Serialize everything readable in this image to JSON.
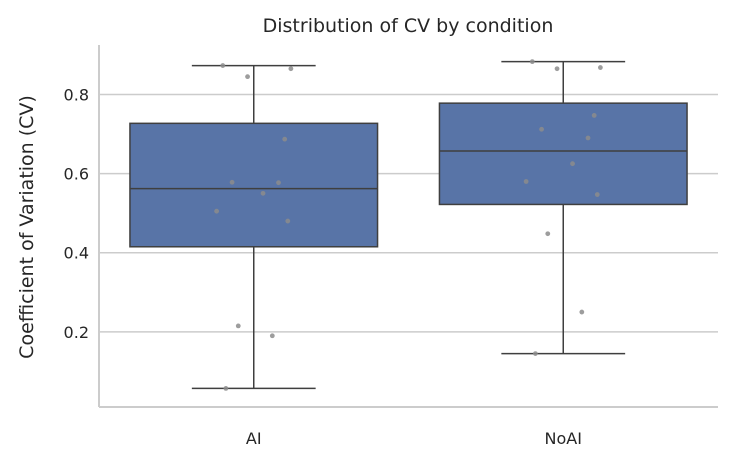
{
  "chart_data": {
    "type": "box",
    "title": "Distribution of CV by condition",
    "xlabel": "",
    "ylabel": "Coefficient of Variation (CV)",
    "categories": [
      "AI",
      "NoAI"
    ],
    "ylim": [
      0.01,
      0.925
    ],
    "yticks": [
      0.2,
      0.4,
      0.6,
      0.8
    ],
    "ytick_labels": [
      "0.2",
      "0.4",
      "0.6",
      "0.8"
    ],
    "grid": true,
    "box_color": "#5874a7",
    "point_color": "#8c8c8c",
    "boxes": [
      {
        "name": "AI",
        "whisker_low": 0.057,
        "q1": 0.415,
        "median": 0.562,
        "q3": 0.727,
        "whisker_high": 0.873
      },
      {
        "name": "NoAI",
        "whisker_low": 0.145,
        "q1": 0.522,
        "median": 0.657,
        "q3": 0.778,
        "whisker_high": 0.883
      }
    ],
    "points": [
      {
        "category": "AI",
        "values": [
          0.057,
          0.19,
          0.215,
          0.48,
          0.505,
          0.55,
          0.577,
          0.578,
          0.687,
          0.845,
          0.865,
          0.873
        ]
      },
      {
        "category": "NoAI",
        "values": [
          0.145,
          0.25,
          0.448,
          0.547,
          0.58,
          0.625,
          0.69,
          0.712,
          0.747,
          0.865,
          0.868,
          0.883
        ]
      }
    ]
  }
}
